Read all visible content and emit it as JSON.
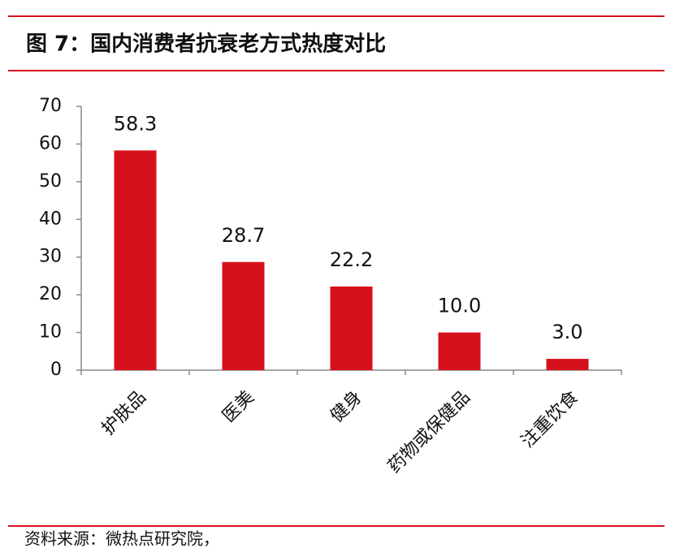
{
  "title": "图 7：国内消费者抗衰老方式热度对比",
  "source": "资料来源：微热点研究院，",
  "chart_data": {
    "type": "bar",
    "categories": [
      "护肤品",
      "医美",
      "健身",
      "药物或保健品",
      "注重饮食"
    ],
    "values": [
      58.3,
      28.7,
      22.2,
      10.0,
      3.0
    ],
    "value_labels": [
      "58.3",
      "28.7",
      "22.2",
      "10.0",
      "3.0"
    ],
    "color": "#d7111b",
    "ylim": [
      0,
      70
    ],
    "yticks": [
      0,
      10,
      20,
      30,
      40,
      50,
      60,
      70
    ],
    "grid": false
  }
}
